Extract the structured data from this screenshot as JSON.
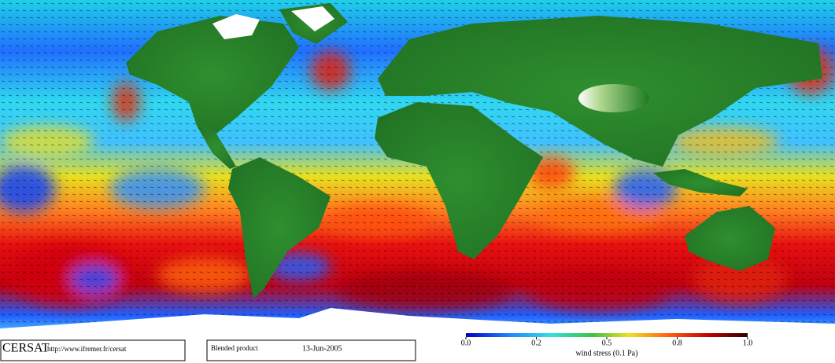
{
  "footer": {
    "logo": "CERSAT",
    "url": "http://www.ifremer.fr/cersat",
    "product": "Blended product",
    "date": "13-Jun-2005"
  },
  "colorbar": {
    "label": "wind stress (0.1 Pa)",
    "clim": [
      0,
      1
    ],
    "ticks": [
      {
        "value": 0,
        "label": "0.0"
      },
      {
        "value": 0.25,
        "label": "0.2"
      },
      0.5,
      {
        "value": 0.75,
        "label": "0.8"
      },
      {
        "value": 1,
        "label": "1.0"
      }
    ]
  }
}
